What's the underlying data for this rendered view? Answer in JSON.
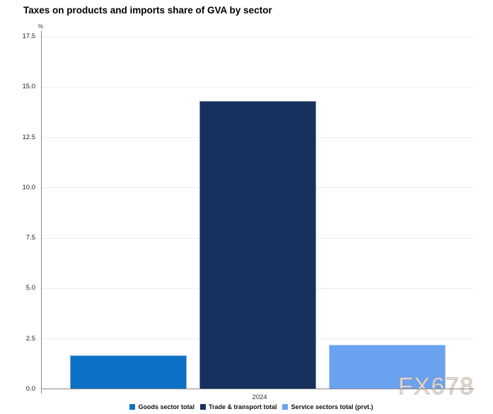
{
  "title": "Taxes on products and imports share of GVA by sector",
  "watermark": "FX678",
  "chart_data": {
    "type": "bar",
    "categories": [
      "2024"
    ],
    "series": [
      {
        "name": "Goods sector total",
        "values": [
          1.7
        ],
        "color": "#0d71c5"
      },
      {
        "name": "Trade & transport total",
        "values": [
          14.3
        ],
        "color": "#17315f"
      },
      {
        "name": "Service sectors total (prvt.)",
        "values": [
          2.2
        ],
        "color": "#6ba2f0"
      }
    ],
    "title": "Taxes on products and imports share of GVA by sector",
    "xlabel": "",
    "ylabel": "%",
    "ylim": [
      0,
      17.5
    ],
    "yticks": [
      0.0,
      2.5,
      5.0,
      7.5,
      10.0,
      12.5,
      15.0,
      17.5
    ],
    "grid": true,
    "legend_position": "bottom"
  }
}
